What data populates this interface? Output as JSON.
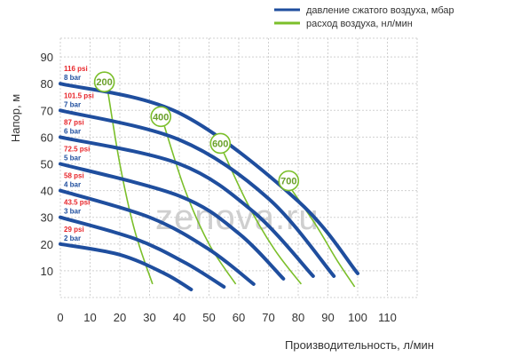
{
  "chart_data": {
    "type": "line",
    "title": "",
    "xlabel": "Производительность, л/мин",
    "ylabel": "Напор, м",
    "xlim": [
      0,
      120
    ],
    "ylim": [
      0,
      97
    ],
    "x_ticks": [
      0,
      10,
      20,
      30,
      40,
      50,
      60,
      70,
      80,
      90,
      100,
      110
    ],
    "y_ticks": [
      10,
      20,
      30,
      40,
      50,
      60,
      70,
      80,
      90
    ],
    "grid": true,
    "legend_position": "top-right",
    "legend": [
      {
        "label": "давление сжатого воздуха, мбар",
        "color": "#1f4e9e"
      },
      {
        "label": "расход воздуха, нл/мин",
        "color": "#7bbf2a"
      }
    ],
    "pressure_series": [
      {
        "psi": "29 psi",
        "bar": "2 bar",
        "points": [
          [
            0,
            20
          ],
          [
            20,
            16
          ],
          [
            35,
            9
          ],
          [
            44,
            3
          ]
        ]
      },
      {
        "psi": "43.5 psi",
        "bar": "3 bar",
        "points": [
          [
            0,
            30
          ],
          [
            25,
            22
          ],
          [
            42,
            13
          ],
          [
            55,
            4
          ]
        ]
      },
      {
        "psi": "58 psi",
        "bar": "4 bar",
        "points": [
          [
            0,
            40
          ],
          [
            30,
            30
          ],
          [
            50,
            18
          ],
          [
            65,
            5
          ]
        ]
      },
      {
        "psi": "72.5 psi",
        "bar": "5 bar",
        "points": [
          [
            0,
            50
          ],
          [
            40,
            38
          ],
          [
            60,
            24
          ],
          [
            75,
            7
          ]
        ]
      },
      {
        "psi": "87 psi",
        "bar": "6 bar",
        "points": [
          [
            0,
            60
          ],
          [
            40,
            50
          ],
          [
            65,
            32
          ],
          [
            85,
            8
          ]
        ]
      },
      {
        "psi": "101.5 psi",
        "bar": "7 bar",
        "points": [
          [
            0,
            70
          ],
          [
            40,
            59
          ],
          [
            70,
            37
          ],
          [
            92,
            8
          ]
        ]
      },
      {
        "psi": "116 psi",
        "bar": "8 bar",
        "points": [
          [
            0,
            80
          ],
          [
            40,
            69
          ],
          [
            80,
            36
          ],
          [
            100,
            9
          ]
        ]
      }
    ],
    "air_flow_series": [
      {
        "label": "200",
        "points": [
          [
            16,
            77
          ],
          [
            20,
            50
          ],
          [
            25,
            25
          ],
          [
            31,
            5
          ]
        ]
      },
      {
        "label": "400",
        "points": [
          [
            35,
            64
          ],
          [
            42,
            40
          ],
          [
            50,
            20
          ],
          [
            59,
            5
          ]
        ]
      },
      {
        "label": "600",
        "points": [
          [
            55,
            54
          ],
          [
            63,
            35
          ],
          [
            72,
            18
          ],
          [
            81,
            5
          ]
        ]
      },
      {
        "label": "700",
        "points": [
          [
            78,
            40
          ],
          [
            86,
            27
          ],
          [
            93,
            14
          ],
          [
            99,
            4
          ]
        ]
      }
    ]
  },
  "watermark": "zenova.ru",
  "colors": {
    "pressure": "#1f4e9e",
    "air_flow": "#7bbf2a",
    "psi_label": "#e8262b",
    "grid": "#d0d0d0"
  }
}
